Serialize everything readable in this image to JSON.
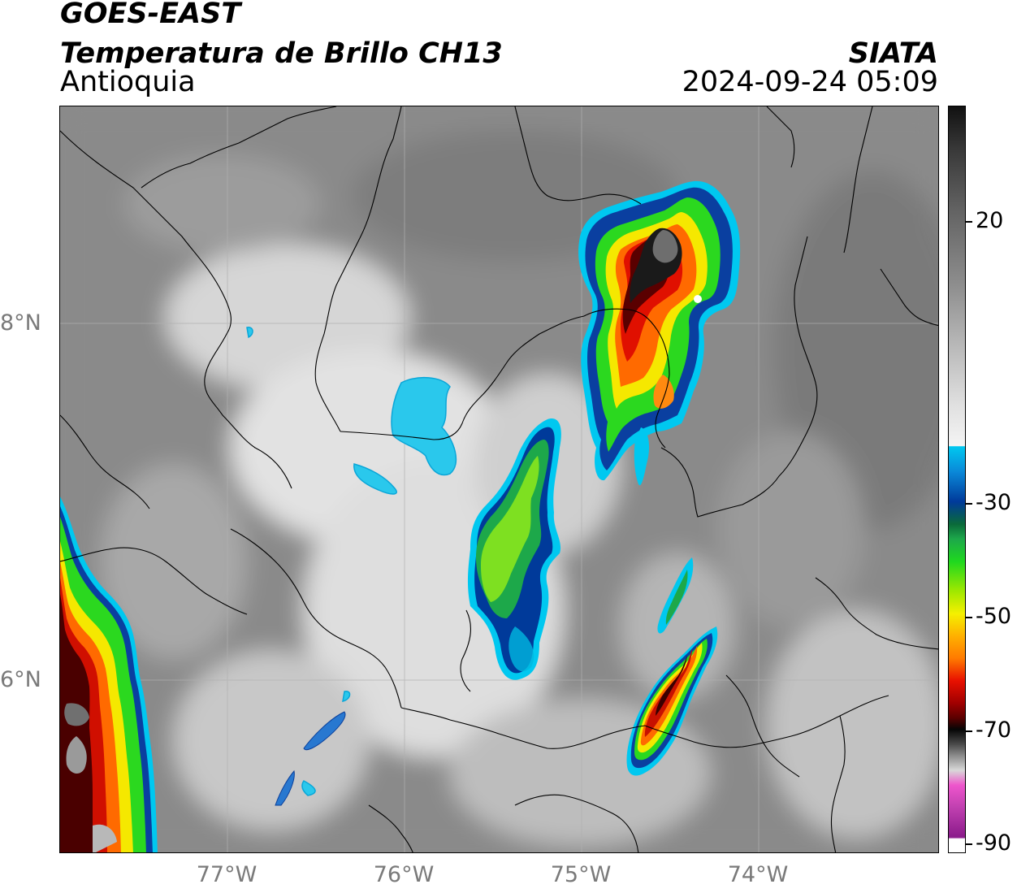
{
  "header": {
    "title_line1": "GOES-EAST",
    "title_line2": "Temperatura de Brillo CH13",
    "region": "Antioquia",
    "organization": "SIATA",
    "datetime": "2024-09-24 05:09"
  },
  "axes": {
    "lat_labels": [
      {
        "label": "8°N",
        "lat": 8
      },
      {
        "label": "6°N",
        "lat": 6
      }
    ],
    "lon_labels": [
      {
        "label": "77°W",
        "lon": -77
      },
      {
        "label": "76°W",
        "lon": -76
      },
      {
        "label": "75°W",
        "lon": -75
      },
      {
        "label": "74°W",
        "lon": -74
      }
    ],
    "lon_range": [
      -77.95,
      -73.0
    ],
    "lat_range": [
      5.0,
      9.2
    ]
  },
  "colorbar": {
    "labels": [
      "20",
      "-30",
      "-50",
      "-70",
      "-90"
    ],
    "range": [
      -90,
      40
    ],
    "colors": {
      "warm_top": "#111111",
      "warm_mid": "#8e8e8e",
      "warm_low": "#f4f4f4",
      "cyan": "#00c8f0",
      "blue": "#003a9a",
      "green": "#1fd81f",
      "yellow": "#f5f000",
      "orange": "#ff7a00",
      "red": "#e81000",
      "dark_red": "#5a0000",
      "black": "#050505",
      "light_gray": "#d8d8d8",
      "magenta": "#ee55cc",
      "purple": "#8a1a8a"
    }
  }
}
